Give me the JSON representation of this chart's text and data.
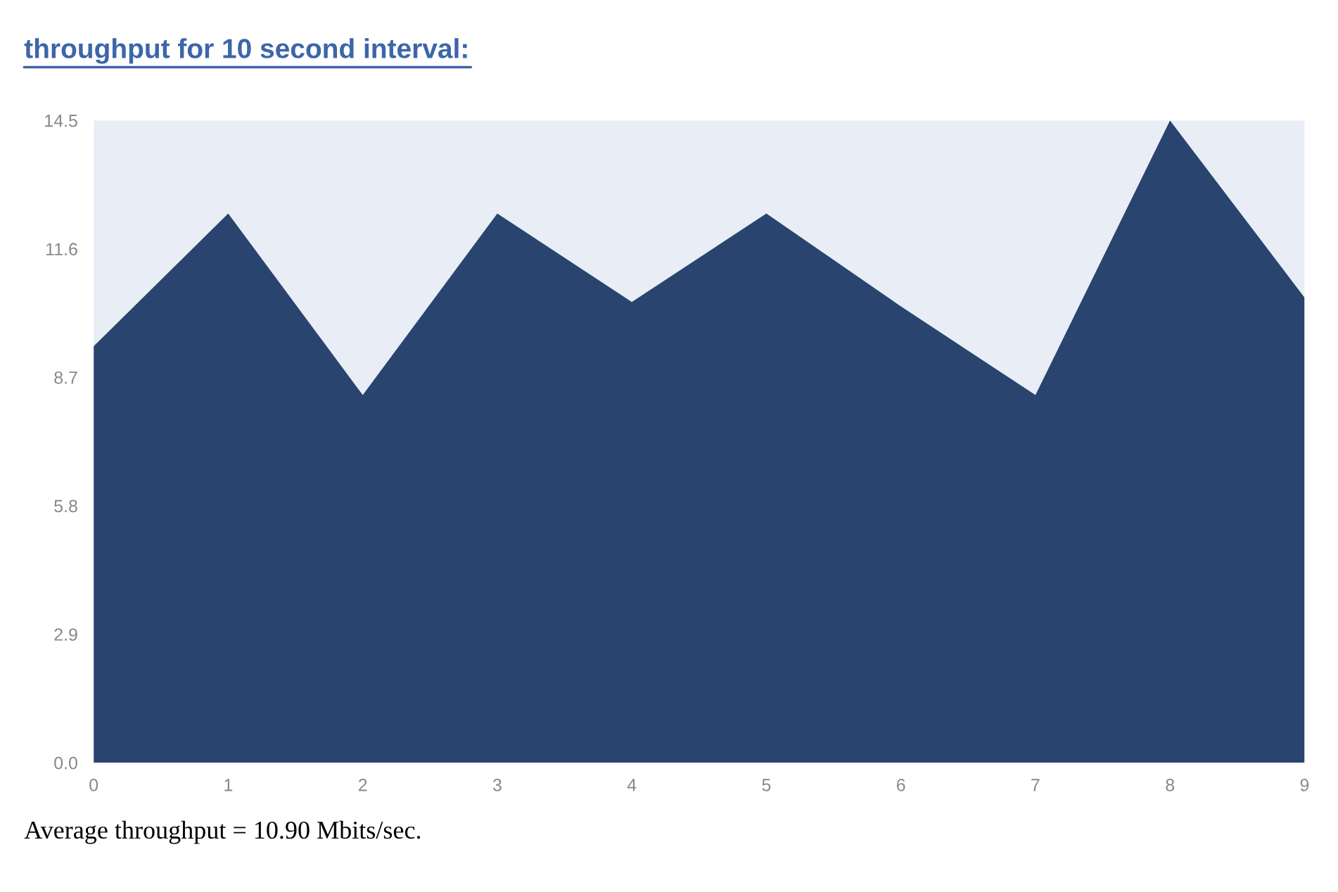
{
  "chart_data": {
    "type": "area",
    "title": "throughput for 10 second interval:",
    "x": [
      0,
      1,
      2,
      3,
      4,
      5,
      6,
      7,
      8,
      9
    ],
    "series": [
      {
        "color": "#2a4470",
        "values": [
          9.4,
          12.4,
          8.3,
          12.4,
          10.4,
          12.4,
          10.3,
          8.3,
          14.5,
          10.5
        ]
      }
    ],
    "xlim": [
      0,
      9
    ],
    "xticks": [
      0,
      1,
      2,
      3,
      4,
      5,
      6,
      7,
      8,
      9
    ],
    "ylim": [
      0,
      14.5
    ],
    "yticks": [
      {
        "value": 0,
        "label": "0.0"
      },
      2.9,
      5.8,
      8.7,
      11.6,
      14.5
    ],
    "grid": false,
    "annotations": [
      "Average throughput = 10.90 Mbits/sec."
    ]
  }
}
